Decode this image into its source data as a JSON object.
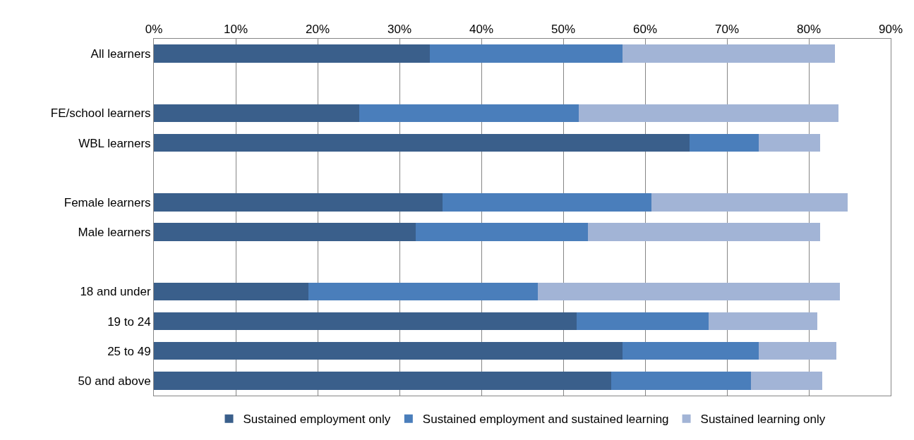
{
  "chart_data": {
    "type": "bar",
    "orientation": "horizontal",
    "stacked": true,
    "categories": [
      "All learners",
      null,
      "FE/school learners",
      "WBL learners",
      null,
      "Female learners",
      "Male learners",
      null,
      "18 and under",
      "19 to 24",
      "25 to 49",
      "50 and above"
    ],
    "series": [
      {
        "name": "Sustained employment only",
        "color": "#3a5f8b",
        "values": [
          33.7,
          null,
          25.1,
          65.4,
          null,
          35.3,
          32.0,
          null,
          18.9,
          51.6,
          57.2,
          55.9
        ]
      },
      {
        "name": "Sustained employment and sustained learning",
        "color": "#4a7ebb",
        "values": [
          23.5,
          null,
          26.8,
          8.5,
          null,
          25.5,
          21.0,
          null,
          28.0,
          16.2,
          16.7,
          17.0
        ]
      },
      {
        "name": "Sustained learning only",
        "color": "#a2b4d6",
        "values": [
          26.0,
          null,
          31.7,
          7.5,
          null,
          23.9,
          28.4,
          null,
          36.9,
          13.2,
          9.5,
          8.7
        ]
      }
    ],
    "xlim": [
      0,
      90
    ],
    "xticks": [
      {
        "value": 0,
        "label": "0%"
      },
      {
        "value": 10,
        "label": "10%"
      },
      {
        "value": 20,
        "label": "20%"
      },
      {
        "value": 30,
        "label": "30%"
      },
      {
        "value": 40,
        "label": "40%"
      },
      {
        "value": 50,
        "label": "50%"
      },
      {
        "value": 60,
        "label": "60%"
      },
      {
        "value": 70,
        "label": "70%"
      },
      {
        "value": 80,
        "label": "80%"
      },
      {
        "value": 90,
        "label": "90%"
      }
    ],
    "grid": "x",
    "legend": "bottom"
  }
}
